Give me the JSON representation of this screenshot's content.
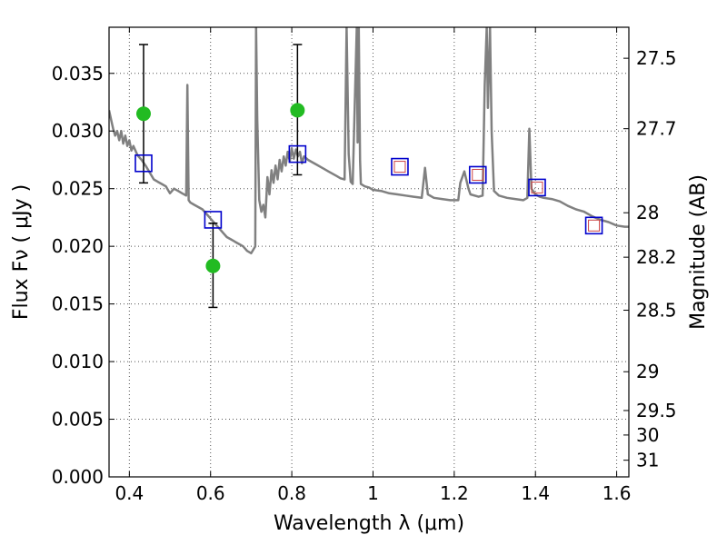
{
  "chart_data": {
    "type": "scatter",
    "title": "",
    "xlabel": "Wavelength  λ (μm)",
    "ylabel": "Flux  Fν  ( μJy )",
    "y2label": "Magnitude (AB)",
    "xlim": [
      0.35,
      1.63
    ],
    "ylim": [
      0.0,
      0.039
    ],
    "grid": true,
    "x_ticks": [
      0.4,
      0.6,
      0.8,
      1.0,
      1.2,
      1.4,
      1.6
    ],
    "x_tick_labels": [
      "0.4",
      "0.6",
      "0.8",
      "1",
      "1.2",
      "1.4",
      "1.6"
    ],
    "y_ticks": [
      0.0,
      0.005,
      0.01,
      0.015,
      0.02,
      0.025,
      0.03,
      0.035
    ],
    "y_tick_labels": [
      "0.000",
      "0.005",
      "0.010",
      "0.015",
      "0.020",
      "0.025",
      "0.030",
      "0.035"
    ],
    "y2_ticks": [
      27.5,
      27.7,
      28,
      28.2,
      28.5,
      29,
      29.5,
      30,
      31
    ],
    "y2_tick_labels": [
      "27.5",
      "27.7",
      "28",
      "28.2",
      "28.5",
      "29",
      "29.5",
      "30",
      "31"
    ],
    "colors": {
      "spectrum": "#808080",
      "observed": "#22bb22",
      "model_box": "#0000cc",
      "model_inner": "#cc4444",
      "errorbar": "#000000",
      "grid": "#555555"
    },
    "series": [
      {
        "kind": "line",
        "points": [
          [
            0.35,
            0.0318
          ],
          [
            0.355,
            0.031
          ],
          [
            0.36,
            0.0302
          ],
          [
            0.365,
            0.0296
          ],
          [
            0.37,
            0.03
          ],
          [
            0.375,
            0.0292
          ],
          [
            0.38,
            0.03
          ],
          [
            0.385,
            0.0289
          ],
          [
            0.39,
            0.0296
          ],
          [
            0.395,
            0.0287
          ],
          [
            0.4,
            0.0292
          ],
          [
            0.405,
            0.0283
          ],
          [
            0.41,
            0.0287
          ],
          [
            0.42,
            0.0279
          ],
          [
            0.43,
            0.0275
          ],
          [
            0.44,
            0.027
          ],
          [
            0.45,
            0.0264
          ],
          [
            0.46,
            0.0258
          ],
          [
            0.47,
            0.0256
          ],
          [
            0.48,
            0.0254
          ],
          [
            0.49,
            0.0252
          ],
          [
            0.5,
            0.0246
          ],
          [
            0.51,
            0.025
          ],
          [
            0.52,
            0.0248
          ],
          [
            0.53,
            0.0246
          ],
          [
            0.54,
            0.0244
          ],
          [
            0.543,
            0.034
          ],
          [
            0.546,
            0.024
          ],
          [
            0.55,
            0.0238
          ],
          [
            0.56,
            0.0236
          ],
          [
            0.57,
            0.0234
          ],
          [
            0.58,
            0.0232
          ],
          [
            0.59,
            0.0228
          ],
          [
            0.6,
            0.0224
          ],
          [
            0.61,
            0.022
          ],
          [
            0.62,
            0.0216
          ],
          [
            0.63,
            0.0212
          ],
          [
            0.64,
            0.0208
          ],
          [
            0.65,
            0.0206
          ],
          [
            0.66,
            0.0204
          ],
          [
            0.67,
            0.0202
          ],
          [
            0.68,
            0.02
          ],
          [
            0.69,
            0.0196
          ],
          [
            0.7,
            0.0194
          ],
          [
            0.71,
            0.02
          ],
          [
            0.712,
            0.039
          ],
          [
            0.715,
            0.031
          ],
          [
            0.72,
            0.024
          ],
          [
            0.725,
            0.023
          ],
          [
            0.73,
            0.0236
          ],
          [
            0.735,
            0.0225
          ],
          [
            0.74,
            0.026
          ],
          [
            0.745,
            0.0245
          ],
          [
            0.75,
            0.0266
          ],
          [
            0.755,
            0.0255
          ],
          [
            0.76,
            0.027
          ],
          [
            0.765,
            0.0258
          ],
          [
            0.77,
            0.0275
          ],
          [
            0.775,
            0.0265
          ],
          [
            0.78,
            0.0278
          ],
          [
            0.785,
            0.027
          ],
          [
            0.79,
            0.0282
          ],
          [
            0.795,
            0.0274
          ],
          [
            0.8,
            0.0285
          ],
          [
            0.805,
            0.0276
          ],
          [
            0.81,
            0.0284
          ],
          [
            0.815,
            0.0278
          ],
          [
            0.82,
            0.0282
          ],
          [
            0.825,
            0.0272
          ],
          [
            0.83,
            0.0278
          ],
          [
            0.84,
            0.0275
          ],
          [
            0.85,
            0.0273
          ],
          [
            0.86,
            0.0271
          ],
          [
            0.87,
            0.0269
          ],
          [
            0.88,
            0.0267
          ],
          [
            0.89,
            0.0265
          ],
          [
            0.9,
            0.0263
          ],
          [
            0.91,
            0.0261
          ],
          [
            0.92,
            0.0259
          ],
          [
            0.93,
            0.0258
          ],
          [
            0.935,
            0.039
          ],
          [
            0.94,
            0.028
          ],
          [
            0.945,
            0.0256
          ],
          [
            0.95,
            0.0254
          ],
          [
            0.96,
            0.039
          ],
          [
            0.962,
            0.029
          ],
          [
            0.965,
            0.039
          ],
          [
            0.968,
            0.0275
          ],
          [
            0.97,
            0.0254
          ],
          [
            0.98,
            0.0252
          ],
          [
            0.99,
            0.0251
          ],
          [
            1.0,
            0.0249
          ],
          [
            1.02,
            0.0248
          ],
          [
            1.04,
            0.0246
          ],
          [
            1.06,
            0.0245
          ],
          [
            1.08,
            0.0244
          ],
          [
            1.1,
            0.0243
          ],
          [
            1.12,
            0.0242
          ],
          [
            1.128,
            0.0268
          ],
          [
            1.135,
            0.0245
          ],
          [
            1.15,
            0.0242
          ],
          [
            1.17,
            0.0241
          ],
          [
            1.19,
            0.024
          ],
          [
            1.21,
            0.024
          ],
          [
            1.215,
            0.0255
          ],
          [
            1.225,
            0.0265
          ],
          [
            1.235,
            0.025
          ],
          [
            1.24,
            0.0245
          ],
          [
            1.26,
            0.0243
          ],
          [
            1.27,
            0.0244
          ],
          [
            1.275,
            0.034
          ],
          [
            1.28,
            0.039
          ],
          [
            1.283,
            0.032
          ],
          [
            1.288,
            0.039
          ],
          [
            1.292,
            0.03
          ],
          [
            1.298,
            0.0248
          ],
          [
            1.31,
            0.0244
          ],
          [
            1.33,
            0.0242
          ],
          [
            1.35,
            0.0241
          ],
          [
            1.37,
            0.024
          ],
          [
            1.38,
            0.0242
          ],
          [
            1.385,
            0.0302
          ],
          [
            1.39,
            0.025
          ],
          [
            1.4,
            0.0245
          ],
          [
            1.41,
            0.0243
          ],
          [
            1.42,
            0.0242
          ],
          [
            1.44,
            0.0241
          ],
          [
            1.46,
            0.0239
          ],
          [
            1.48,
            0.0235
          ],
          [
            1.5,
            0.0232
          ],
          [
            1.52,
            0.023
          ],
          [
            1.54,
            0.0226
          ],
          [
            1.56,
            0.0223
          ],
          [
            1.58,
            0.0221
          ],
          [
            1.6,
            0.0218
          ],
          [
            1.62,
            0.0217
          ],
          [
            1.63,
            0.0217
          ]
        ]
      },
      {
        "kind": "errorbar",
        "points": [
          {
            "x": 0.435,
            "y": 0.0315,
            "ylow": 0.0255,
            "yhigh": 0.0375
          },
          {
            "x": 0.606,
            "y": 0.0183,
            "ylow": 0.0147,
            "yhigh": 0.022
          },
          {
            "x": 0.814,
            "y": 0.0318,
            "ylow": 0.0262,
            "yhigh": 0.0375
          }
        ]
      },
      {
        "kind": "box",
        "points": [
          {
            "x": 0.435,
            "y": 0.0272
          },
          {
            "x": 0.606,
            "y": 0.0223
          },
          {
            "x": 0.814,
            "y": 0.028
          },
          {
            "x": 1.066,
            "y": 0.0269,
            "inner": true
          },
          {
            "x": 1.258,
            "y": 0.0262,
            "inner": true
          },
          {
            "x": 1.404,
            "y": 0.0251,
            "inner": true
          },
          {
            "x": 1.544,
            "y": 0.0218,
            "inner": true
          }
        ]
      }
    ]
  }
}
